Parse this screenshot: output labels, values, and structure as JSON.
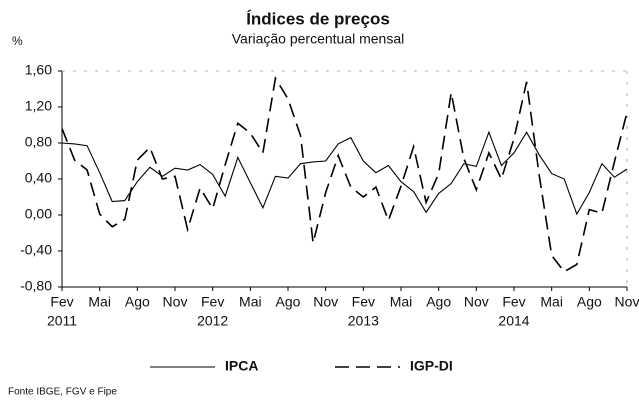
{
  "chart_data": {
    "type": "line",
    "title": "Índices de preços",
    "subtitle": "Variação percentual mensal",
    "y_unit": "%",
    "source": "Fonte IBGE, FGV e Fipe",
    "categories": [
      "Fev",
      null,
      null,
      "Mai",
      null,
      null,
      "Ago",
      null,
      null,
      "Nov",
      null,
      null,
      "Fev",
      null,
      null,
      "Mai",
      null,
      null,
      "Ago",
      null,
      null,
      "Nov",
      null,
      null,
      "Fev",
      null,
      null,
      "Mai",
      null,
      null,
      "Ago",
      null,
      null,
      "Nov",
      null,
      null,
      "Fev",
      null,
      null,
      "Mai",
      null,
      null,
      "Ago",
      null,
      null,
      "Nov"
    ],
    "year_labels": [
      "2011",
      "2012",
      "2013",
      "2014"
    ],
    "series": [
      {
        "name": "IPCA",
        "color": "#000000",
        "style": "solid",
        "values": [
          0.8,
          0.79,
          0.77,
          0.47,
          0.15,
          0.16,
          0.37,
          0.53,
          0.43,
          0.52,
          0.5,
          0.56,
          0.45,
          0.21,
          0.64,
          0.36,
          0.08,
          0.43,
          0.41,
          0.57,
          0.59,
          0.6,
          0.79,
          0.86,
          0.6,
          0.47,
          0.55,
          0.37,
          0.26,
          0.03,
          0.24,
          0.35,
          0.57,
          0.54,
          0.92,
          0.55,
          0.69,
          0.92,
          0.67,
          0.46,
          0.4,
          0.01,
          0.25,
          0.57,
          0.42,
          0.51
        ]
      },
      {
        "name": "IGP-DI",
        "color": "#000000",
        "style": "dashed",
        "values": [
          0.96,
          0.61,
          0.5,
          0.01,
          -0.13,
          -0.05,
          0.61,
          0.75,
          0.4,
          0.43,
          -0.16,
          0.3,
          0.07,
          0.56,
          1.02,
          0.91,
          0.69,
          1.52,
          1.29,
          0.88,
          -0.31,
          0.25,
          0.66,
          0.31,
          0.2,
          0.31,
          -0.06,
          0.32,
          0.76,
          0.14,
          0.46,
          1.36,
          0.63,
          0.28,
          0.69,
          0.4,
          0.85,
          1.48,
          0.45,
          -0.45,
          -0.63,
          -0.55,
          0.06,
          0.02,
          0.59,
          1.14
        ]
      }
    ],
    "ylim": [
      -0.8,
      1.6
    ],
    "yticks": [
      {
        "value": 1.6,
        "label": "1,60"
      },
      {
        "value": 1.2,
        "label": "1,20"
      },
      {
        "value": 0.8,
        "label": "0,80"
      },
      {
        "value": 0.4,
        "label": "0,40"
      },
      {
        "value": 0,
        "label": "0,00"
      },
      {
        "value": -0.4,
        "label": "-0,40"
      },
      {
        "value": -0.8,
        "label": "-0,80"
      }
    ],
    "grid": false
  }
}
